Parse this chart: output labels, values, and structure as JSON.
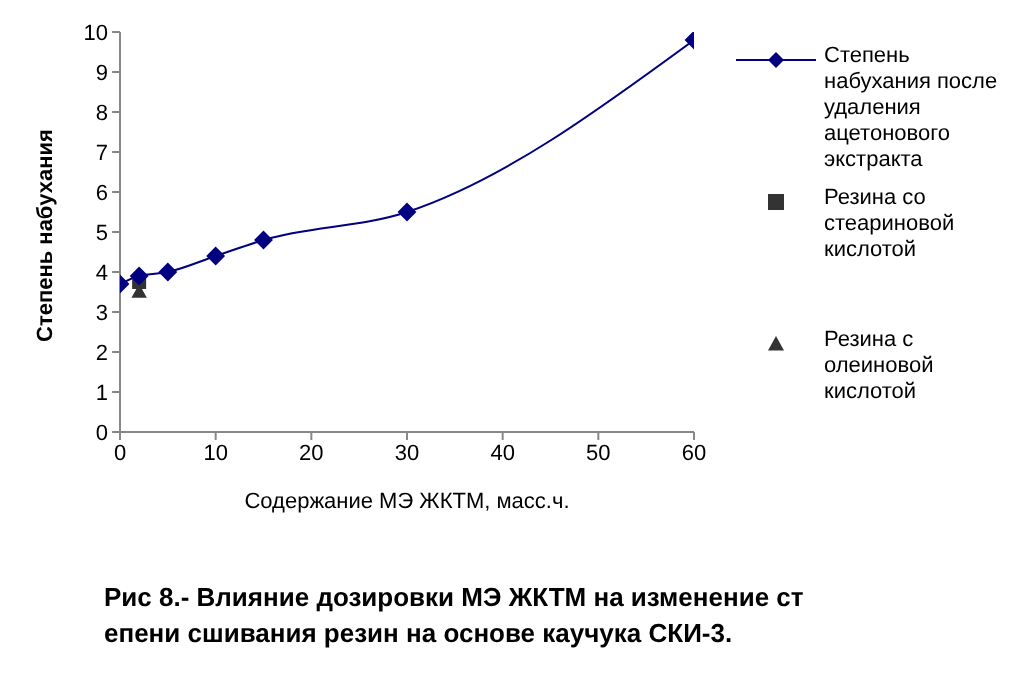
{
  "chart_data": {
    "type": "line",
    "xlabel": "Содержание МЭ ЖКТМ, масс.ч.",
    "ylabel": "Степень набухания",
    "series": [
      {
        "name": "Степень набухания после удаления ацетонового экстракта",
        "marker": "diamond",
        "color": "#000080",
        "x": [
          0,
          2,
          5,
          10,
          15,
          30,
          60
        ],
        "values": [
          3.7,
          3.9,
          4.0,
          4.4,
          4.8,
          5.5,
          9.8
        ]
      },
      {
        "name": "Резина со стеариновой кислотой",
        "type": "scatter",
        "marker": "square",
        "color": "#333333",
        "x": [
          2
        ],
        "values": [
          3.75
        ]
      },
      {
        "name": "Резина с олеиновой кислотой",
        "type": "scatter",
        "marker": "triangle",
        "color": "#333333",
        "x": [
          2
        ],
        "values": [
          3.5
        ]
      }
    ],
    "xlim": [
      0,
      60
    ],
    "xticks": [
      0,
      10,
      20,
      30,
      40,
      50,
      60
    ],
    "ylim": [
      0,
      10
    ],
    "yticks": [
      0,
      1,
      2,
      3,
      4,
      5,
      6,
      7,
      8,
      9,
      10
    ],
    "grid": false,
    "legend": "right",
    "annotations": [
      "Рис 8.- Влияние дозировки МЭ ЖКТМ на изменение ст епени сшивания резин на основе каучука СКИ-3."
    ]
  }
}
